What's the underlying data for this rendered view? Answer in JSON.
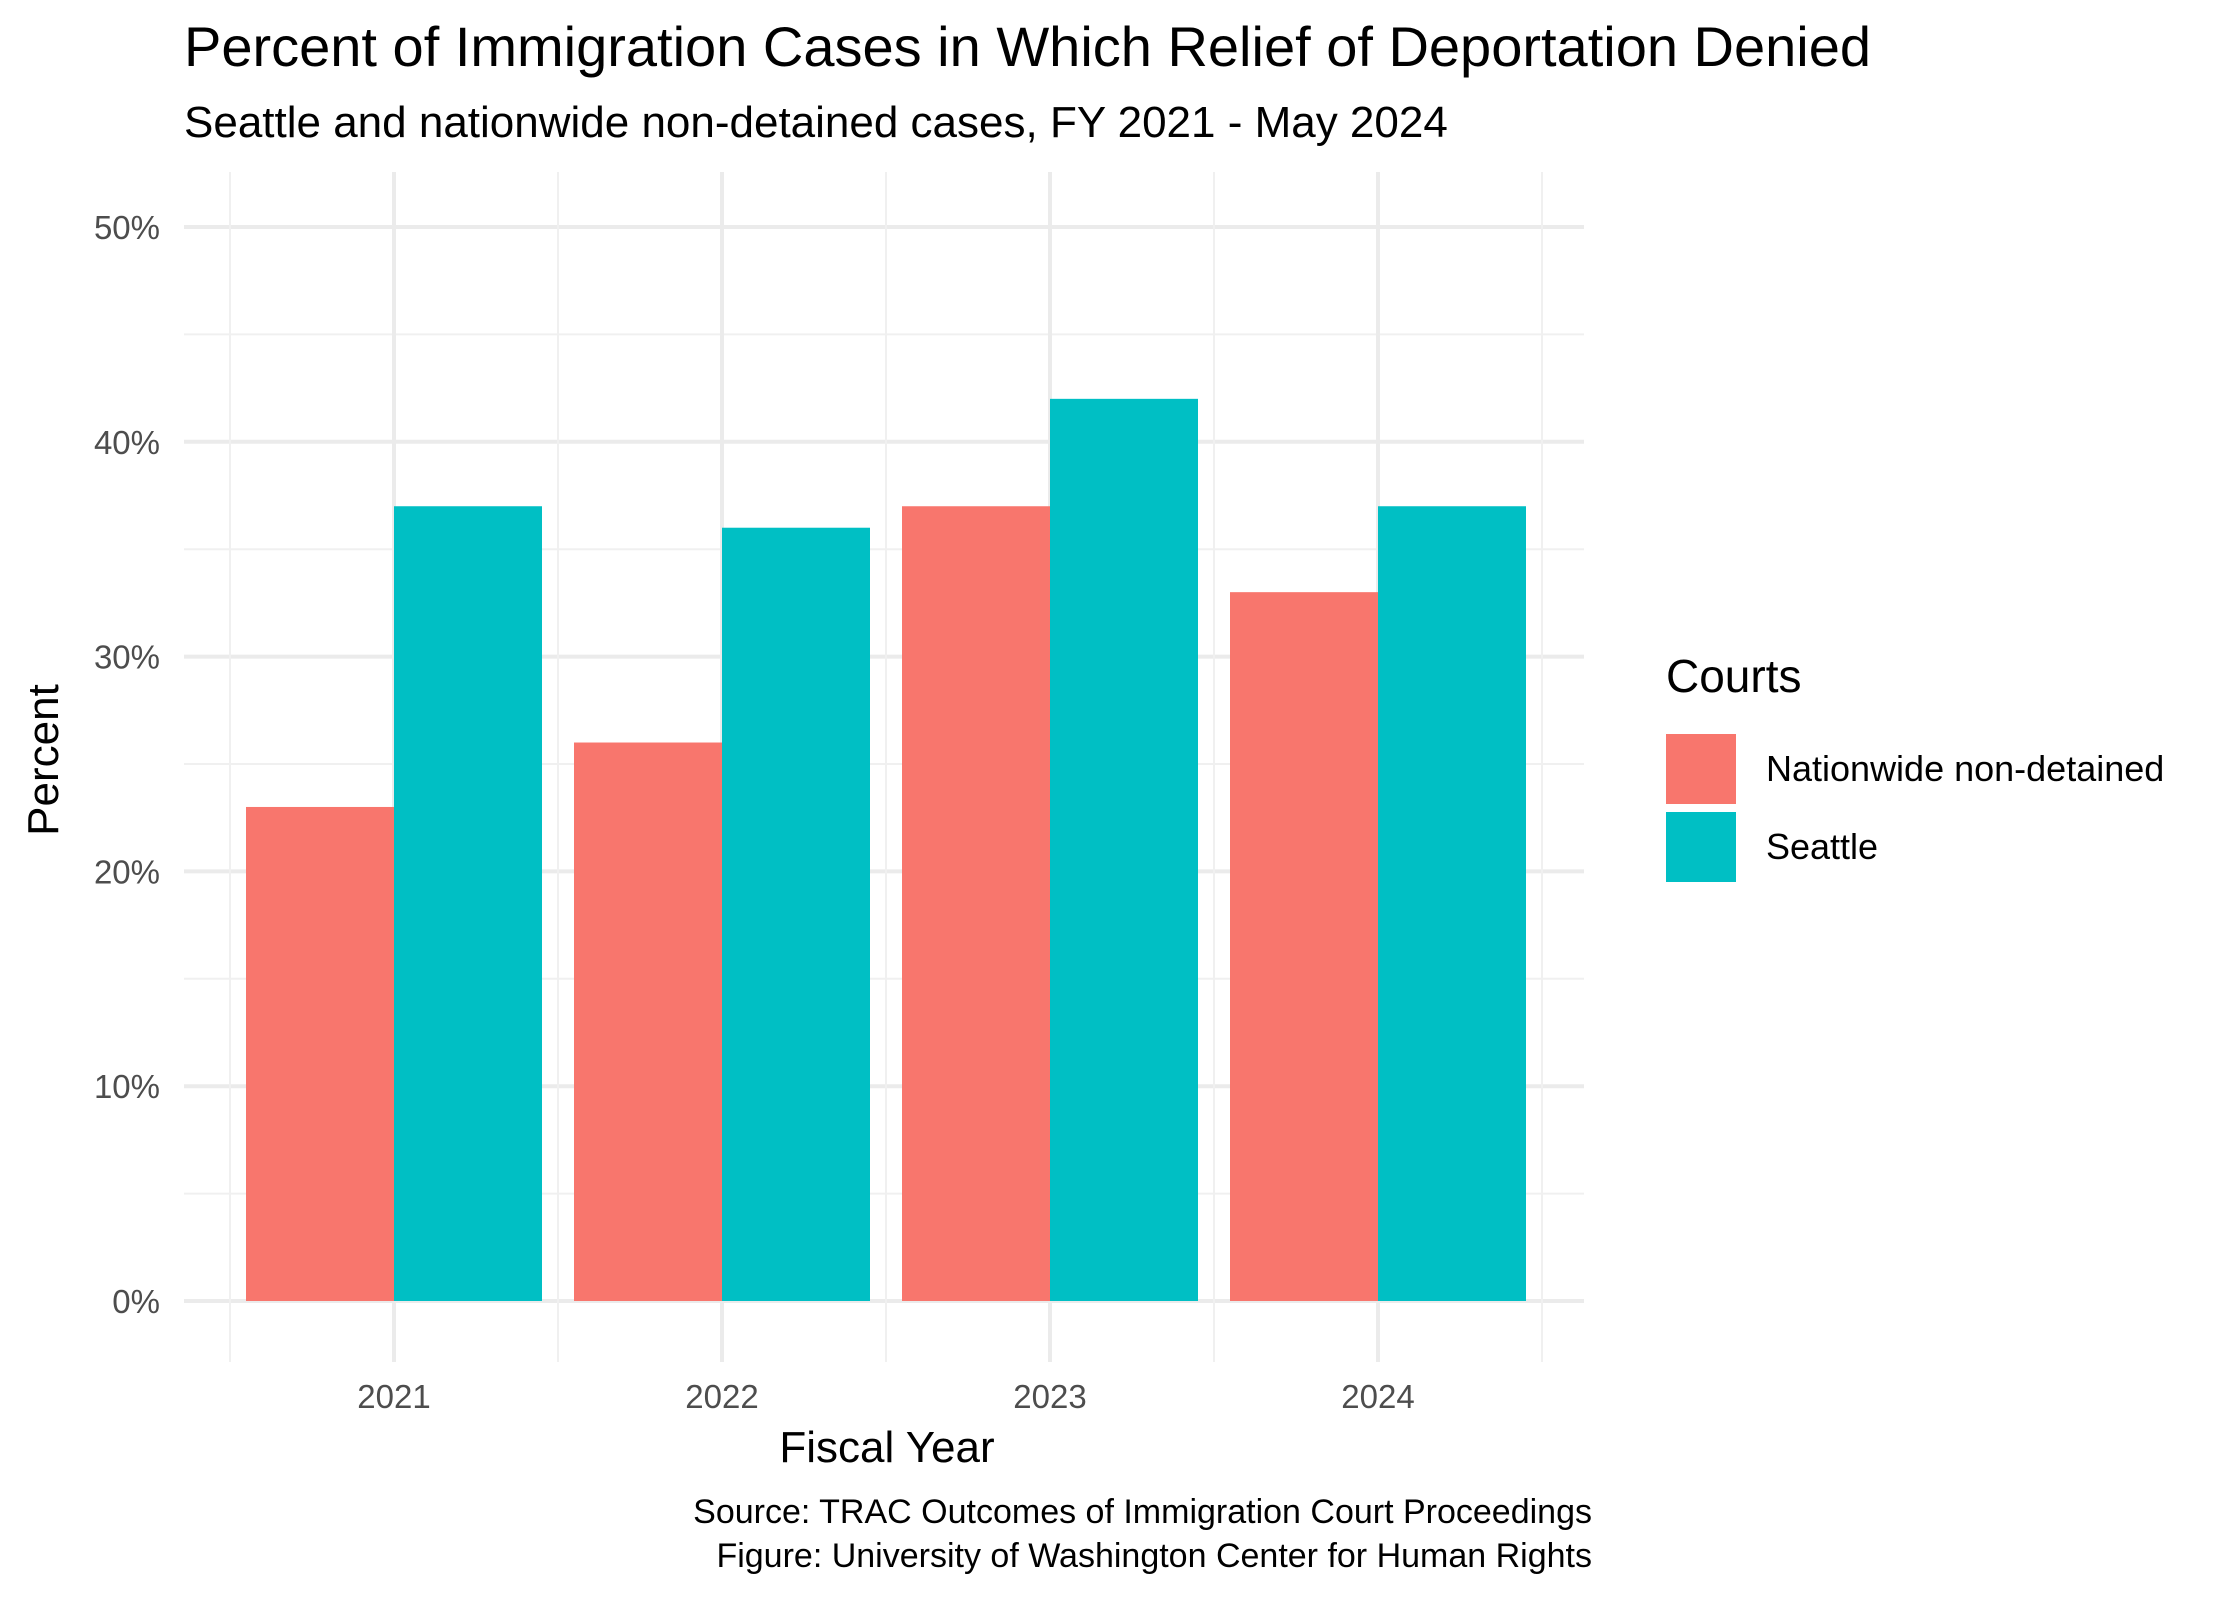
{
  "chart_data": {
    "type": "bar",
    "title": "Percent of Immigration Cases in Which Relief of Deportation Denied",
    "subtitle": "Seattle and nationwide non-detained cases, FY 2021 - May 2024",
    "xlabel": "Fiscal Year",
    "ylabel": "Percent",
    "categories": [
      "2021",
      "2022",
      "2023",
      "2024"
    ],
    "series": [
      {
        "name": "Nationwide non-detained",
        "color": "#F8766D",
        "values": [
          23,
          26,
          37,
          33
        ]
      },
      {
        "name": "Seattle",
        "color": "#00BFC4",
        "values": [
          37,
          36,
          42,
          37
        ]
      }
    ],
    "ylim": [
      0,
      50
    ],
    "yticks": [
      0,
      10,
      20,
      30,
      40,
      50
    ],
    "ytick_labels": [
      "0%",
      "10%",
      "20%",
      "30%",
      "40%",
      "50%"
    ],
    "grid": true,
    "legend": {
      "title": "Courts",
      "position": "right"
    },
    "caption": [
      "Source: TRAC Outcomes of Immigration Court Proceedings",
      "Figure: University of Washington Center for Human Rights"
    ]
  }
}
